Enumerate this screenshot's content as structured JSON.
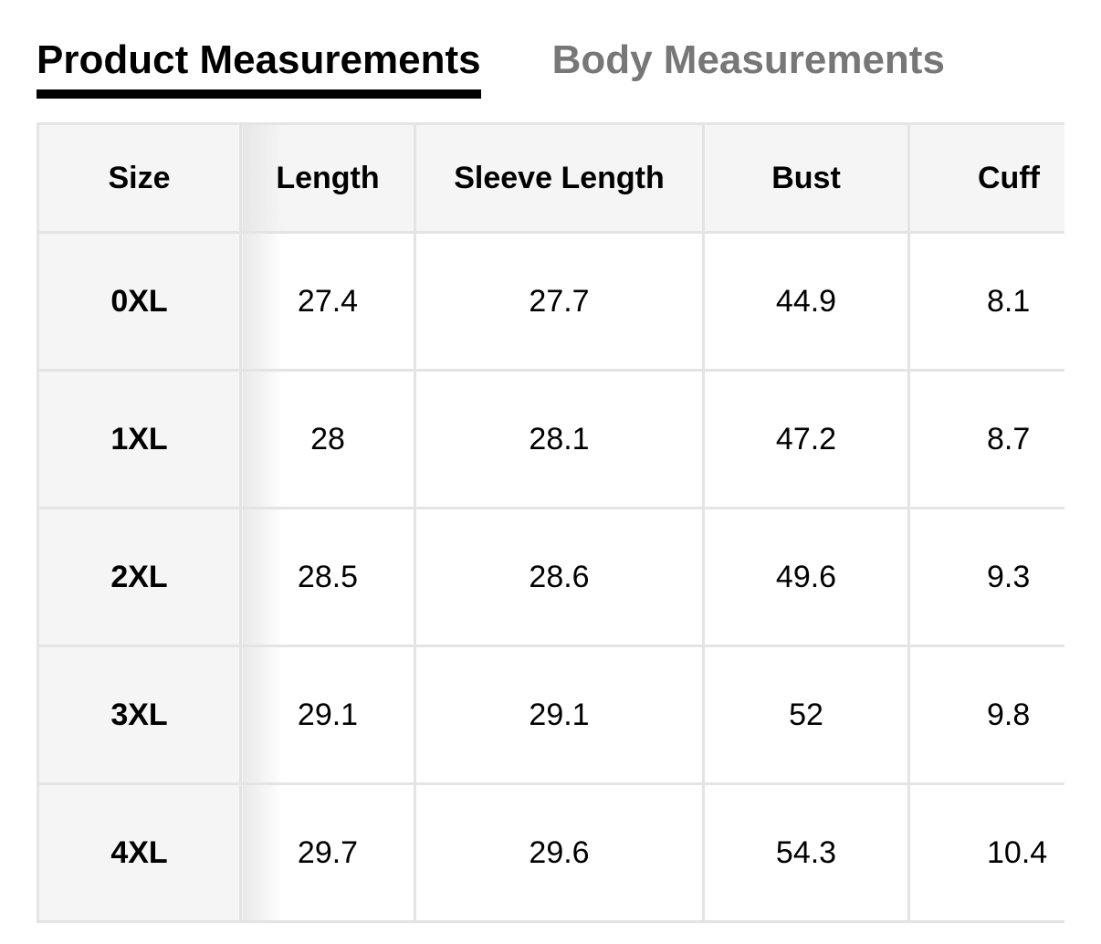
{
  "tabs": [
    {
      "label": "Product Measurements",
      "active": true
    },
    {
      "label": "Body Measurements",
      "active": false
    }
  ],
  "table": {
    "headers": [
      "Size",
      "Length",
      "Sleeve Length",
      "Bust",
      "Cuff"
    ],
    "rows": [
      [
        "0XL",
        "27.4",
        "27.7",
        "44.9",
        "8.1"
      ],
      [
        "1XL",
        "28",
        "28.1",
        "47.2",
        "8.7"
      ],
      [
        "2XL",
        "28.5",
        "28.6",
        "49.6",
        "9.3"
      ],
      [
        "3XL",
        "29.1",
        "29.1",
        "52",
        "9.8"
      ],
      [
        "4XL",
        "29.7",
        "29.6",
        "54.3",
        "10.4"
      ]
    ]
  }
}
